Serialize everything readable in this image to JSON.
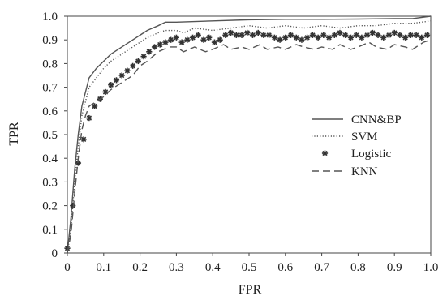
{
  "chart_data": {
    "type": "line",
    "title": "",
    "xlabel": "FPR",
    "ylabel": "TPR",
    "xlim": [
      0,
      1.0
    ],
    "ylim": [
      0,
      1.0
    ],
    "x_ticks": [
      "0",
      "0.1",
      "0.2",
      "0.3",
      "0.4",
      "0.5",
      "0.6",
      "0.7",
      "0.8",
      "0.9",
      "1.0"
    ],
    "y_ticks": [
      "0",
      "0.1",
      "0.2",
      "0.3",
      "0.4",
      "0.5",
      "0.6",
      "0.7",
      "0.8",
      "0.9",
      "1.0"
    ],
    "grid": false,
    "legend_position": "right-center",
    "series": [
      {
        "name": "CNN&BP",
        "style": "solid",
        "color": "#555555",
        "x": [
          0,
          0.01,
          0.02,
          0.03,
          0.04,
          0.05,
          0.06,
          0.08,
          0.1,
          0.12,
          0.15,
          0.18,
          0.2,
          0.22,
          0.25,
          0.27,
          0.3,
          0.4,
          0.5,
          0.6,
          0.7,
          0.8,
          0.9,
          0.95,
          1.0
        ],
        "values": [
          0,
          0.15,
          0.35,
          0.5,
          0.62,
          0.68,
          0.74,
          0.78,
          0.81,
          0.84,
          0.87,
          0.9,
          0.92,
          0.94,
          0.96,
          0.975,
          0.975,
          0.98,
          0.985,
          0.987,
          0.987,
          0.988,
          0.99,
          0.99,
          1.0
        ]
      },
      {
        "name": "SVM",
        "style": "dotted",
        "color": "#555555",
        "x": [
          0,
          0.01,
          0.02,
          0.03,
          0.04,
          0.05,
          0.06,
          0.08,
          0.1,
          0.12,
          0.15,
          0.18,
          0.2,
          0.22,
          0.25,
          0.27,
          0.3,
          0.32,
          0.35,
          0.4,
          0.45,
          0.5,
          0.55,
          0.6,
          0.65,
          0.7,
          0.75,
          0.8,
          0.85,
          0.9,
          0.95,
          1.0
        ],
        "values": [
          0,
          0.1,
          0.3,
          0.45,
          0.58,
          0.64,
          0.7,
          0.74,
          0.78,
          0.81,
          0.84,
          0.87,
          0.89,
          0.91,
          0.93,
          0.94,
          0.94,
          0.93,
          0.95,
          0.94,
          0.95,
          0.96,
          0.95,
          0.96,
          0.95,
          0.96,
          0.95,
          0.96,
          0.96,
          0.97,
          0.97,
          0.98
        ]
      },
      {
        "name": "Logistic",
        "style": "markers",
        "color": "#333333",
        "x": [
          0.0,
          0.015,
          0.03,
          0.045,
          0.06,
          0.075,
          0.09,
          0.105,
          0.12,
          0.135,
          0.15,
          0.165,
          0.18,
          0.195,
          0.21,
          0.225,
          0.24,
          0.255,
          0.27,
          0.285,
          0.3,
          0.315,
          0.33,
          0.345,
          0.36,
          0.375,
          0.39,
          0.405,
          0.42,
          0.435,
          0.45,
          0.465,
          0.48,
          0.495,
          0.51,
          0.525,
          0.54,
          0.555,
          0.57,
          0.585,
          0.6,
          0.615,
          0.63,
          0.645,
          0.66,
          0.675,
          0.69,
          0.705,
          0.72,
          0.735,
          0.75,
          0.765,
          0.78,
          0.795,
          0.81,
          0.825,
          0.84,
          0.855,
          0.87,
          0.885,
          0.9,
          0.915,
          0.93,
          0.945,
          0.96,
          0.975,
          0.99
        ],
        "values": [
          0.02,
          0.2,
          0.38,
          0.48,
          0.57,
          0.62,
          0.65,
          0.68,
          0.71,
          0.73,
          0.75,
          0.77,
          0.79,
          0.81,
          0.83,
          0.85,
          0.87,
          0.88,
          0.89,
          0.9,
          0.91,
          0.89,
          0.9,
          0.91,
          0.92,
          0.9,
          0.91,
          0.89,
          0.9,
          0.92,
          0.93,
          0.92,
          0.92,
          0.93,
          0.92,
          0.93,
          0.92,
          0.92,
          0.91,
          0.9,
          0.91,
          0.92,
          0.91,
          0.9,
          0.91,
          0.92,
          0.91,
          0.92,
          0.91,
          0.92,
          0.93,
          0.92,
          0.91,
          0.92,
          0.91,
          0.92,
          0.93,
          0.92,
          0.91,
          0.92,
          0.93,
          0.92,
          0.91,
          0.92,
          0.92,
          0.91,
          0.92
        ]
      },
      {
        "name": "KNN",
        "style": "dashed",
        "color": "#555555",
        "x": [
          0,
          0.01,
          0.02,
          0.03,
          0.04,
          0.05,
          0.06,
          0.08,
          0.1,
          0.12,
          0.15,
          0.18,
          0.2,
          0.22,
          0.25,
          0.28,
          0.3,
          0.32,
          0.35,
          0.38,
          0.4,
          0.43,
          0.45,
          0.48,
          0.5,
          0.53,
          0.55,
          0.58,
          0.6,
          0.63,
          0.65,
          0.68,
          0.7,
          0.73,
          0.75,
          0.78,
          0.8,
          0.83,
          0.85,
          0.88,
          0.9,
          0.93,
          0.95,
          0.98,
          1.0
        ],
        "values": [
          0,
          0.08,
          0.25,
          0.4,
          0.52,
          0.58,
          0.62,
          0.64,
          0.66,
          0.69,
          0.72,
          0.75,
          0.79,
          0.81,
          0.85,
          0.87,
          0.87,
          0.85,
          0.87,
          0.85,
          0.86,
          0.88,
          0.86,
          0.87,
          0.86,
          0.88,
          0.86,
          0.87,
          0.86,
          0.88,
          0.87,
          0.86,
          0.87,
          0.86,
          0.88,
          0.86,
          0.87,
          0.89,
          0.87,
          0.86,
          0.88,
          0.87,
          0.86,
          0.89,
          0.9
        ]
      }
    ]
  }
}
